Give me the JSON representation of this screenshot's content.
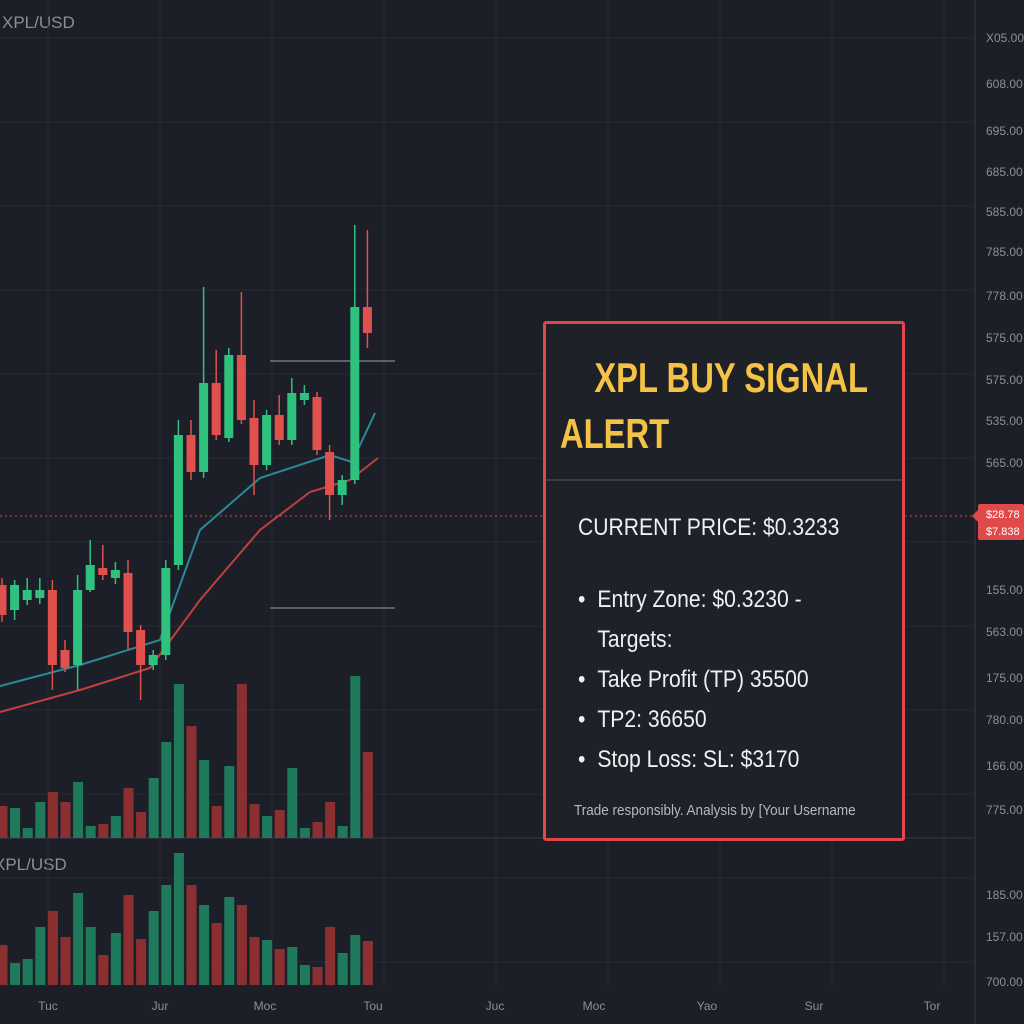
{
  "header": {
    "symbol": "XPL/USD"
  },
  "price_axis": {
    "labels": [
      "X05.00",
      "608.00",
      "695.00",
      "685.00",
      "585.00",
      "785.00",
      "778.00",
      "575.00",
      "575.00",
      "535.00",
      "565.00",
      "155.00",
      "563.00",
      "175.00",
      "780.00",
      "166.00",
      "775.00",
      "185.00",
      "157.00",
      "700.00"
    ]
  },
  "price_tag": {
    "labels": [
      "$28.78",
      "$7.838"
    ]
  },
  "time_axis": {
    "labels": [
      "Tuc",
      "Jur",
      "Moc",
      "Tou",
      "Juc",
      "Moc",
      "Yao",
      "Sur",
      "Tor"
    ]
  },
  "lower_pane": {
    "symbol": "XPL/USD"
  },
  "alert": {
    "title": "XPL BUY SIGNAL ALERT",
    "current_price": "CURRENT PRICE: $0.3233",
    "items": [
      {
        "text": "Entry Zone: $0.3230 -",
        "bullet": true
      },
      {
        "text": "Targets:",
        "bullet": false
      },
      {
        "text": "Take Profit (TP) 35500",
        "bullet": true
      },
      {
        "text": "TP2: 36650",
        "bullet": true
      },
      {
        "text": "Stop Loss: SL: $3170",
        "bullet": true
      }
    ],
    "footer": "Trade responsibly. Analysis by [Your Username"
  }
}
